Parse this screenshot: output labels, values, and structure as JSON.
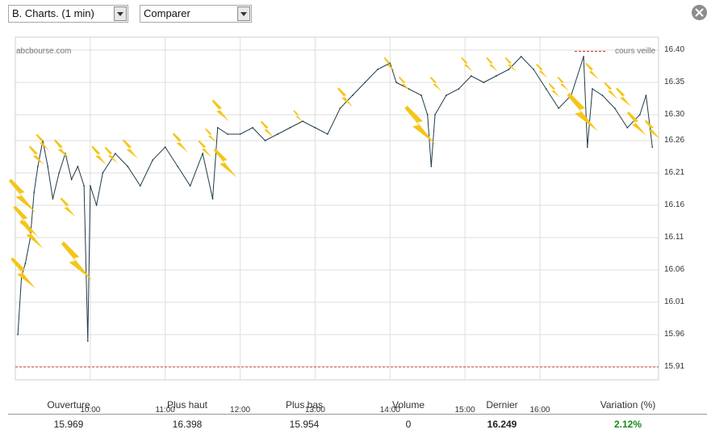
{
  "toolbar": {
    "interval_select": "B. Charts. (1 min)",
    "compare_select": "Comparer"
  },
  "chart": {
    "source": "abcbourse.com",
    "prev_close_legend": "cours veille",
    "y_ticks": [
      "16.40",
      "16.35",
      "16.30",
      "16.26",
      "16.21",
      "16.16",
      "16.11",
      "16.06",
      "16.01",
      "15.96",
      "15.91"
    ],
    "x_ticks": [
      "10:00",
      "11:00",
      "12:00",
      "13:00",
      "14:00",
      "15:00",
      "16:00"
    ],
    "colors": {
      "price": "#1f3b4a",
      "prev_close": "#cc3333",
      "grid": "#dedede",
      "flash": "#f5c518"
    }
  },
  "chart_data": {
    "type": "line",
    "x_unit": "time",
    "ylim": [
      15.89,
      16.42
    ],
    "prev_close": 15.91,
    "series": [
      {
        "points": [
          [
            "09:02",
            15.96
          ],
          [
            "09:05",
            16.05
          ],
          [
            "09:08",
            16.07
          ],
          [
            "09:12",
            16.11
          ],
          [
            "09:15",
            16.18
          ],
          [
            "09:18",
            16.22
          ],
          [
            "09:22",
            16.26
          ],
          [
            "09:26",
            16.22
          ],
          [
            "09:30",
            16.17
          ],
          [
            "09:35",
            16.21
          ],
          [
            "09:40",
            16.24
          ],
          [
            "09:45",
            16.2
          ],
          [
            "09:50",
            16.22
          ],
          [
            "09:55",
            16.19
          ],
          [
            "09:58",
            15.95
          ],
          [
            "10:00",
            16.19
          ],
          [
            "10:05",
            16.16
          ],
          [
            "10:10",
            16.21
          ],
          [
            "10:20",
            16.24
          ],
          [
            "10:30",
            16.22
          ],
          [
            "10:40",
            16.19
          ],
          [
            "10:50",
            16.23
          ],
          [
            "11:00",
            16.25
          ],
          [
            "11:10",
            16.22
          ],
          [
            "11:20",
            16.19
          ],
          [
            "11:30",
            16.24
          ],
          [
            "11:38",
            16.17
          ],
          [
            "11:42",
            16.28
          ],
          [
            "11:50",
            16.27
          ],
          [
            "12:00",
            16.27
          ],
          [
            "12:10",
            16.28
          ],
          [
            "12:20",
            16.26
          ],
          [
            "12:30",
            16.27
          ],
          [
            "12:40",
            16.28
          ],
          [
            "12:50",
            16.29
          ],
          [
            "13:00",
            16.28
          ],
          [
            "13:10",
            16.27
          ],
          [
            "13:20",
            16.31
          ],
          [
            "13:30",
            16.33
          ],
          [
            "13:40",
            16.35
          ],
          [
            "13:50",
            16.37
          ],
          [
            "14:00",
            16.38
          ],
          [
            "14:05",
            16.35
          ],
          [
            "14:15",
            16.34
          ],
          [
            "14:25",
            16.33
          ],
          [
            "14:30",
            16.3
          ],
          [
            "14:33",
            16.22
          ],
          [
            "14:36",
            16.3
          ],
          [
            "14:45",
            16.33
          ],
          [
            "14:55",
            16.34
          ],
          [
            "15:05",
            16.36
          ],
          [
            "15:15",
            16.35
          ],
          [
            "15:25",
            16.36
          ],
          [
            "15:35",
            16.37
          ],
          [
            "15:45",
            16.39
          ],
          [
            "15:55",
            16.37
          ],
          [
            "16:05",
            16.34
          ],
          [
            "16:15",
            16.31
          ],
          [
            "16:25",
            16.33
          ],
          [
            "16:35",
            16.39
          ],
          [
            "16:38",
            16.25
          ],
          [
            "16:42",
            16.34
          ],
          [
            "16:50",
            16.33
          ],
          [
            "17:00",
            16.31
          ],
          [
            "17:10",
            16.28
          ],
          [
            "17:20",
            16.3
          ],
          [
            "17:25",
            16.33
          ],
          [
            "17:30",
            16.25
          ]
        ]
      }
    ],
    "grid": true
  },
  "stats": [
    {
      "label": "Ouverture",
      "value": "15.969",
      "style": ""
    },
    {
      "label": "Plus haut",
      "value": "16.398",
      "style": ""
    },
    {
      "label": "Plus bas",
      "value": "15.954",
      "style": ""
    },
    {
      "label": "Volume",
      "value": "0",
      "style": ""
    },
    {
      "label": "Dernier",
      "value": "16.249",
      "style": "bold"
    },
    {
      "label": "Variation (%)",
      "value": "2.12%",
      "style": "green"
    }
  ],
  "flashes": [
    {
      "t": "09:02",
      "v": 16.18,
      "s": 1.4
    },
    {
      "t": "09:05",
      "v": 16.14,
      "s": 1.3
    },
    {
      "t": "09:10",
      "v": 16.12,
      "s": 1.2
    },
    {
      "t": "09:03",
      "v": 16.06,
      "s": 1.3
    },
    {
      "t": "09:15",
      "v": 16.24,
      "s": 0.8
    },
    {
      "t": "09:20",
      "v": 16.26,
      "s": 0.7
    },
    {
      "t": "09:35",
      "v": 16.25,
      "s": 0.8
    },
    {
      "t": "09:40",
      "v": 16.16,
      "s": 0.8
    },
    {
      "t": "09:45",
      "v": 16.08,
      "s": 1.6
    },
    {
      "t": "10:05",
      "v": 16.24,
      "s": 0.8
    },
    {
      "t": "10:15",
      "v": 16.24,
      "s": 0.7
    },
    {
      "t": "10:30",
      "v": 16.25,
      "s": 0.8
    },
    {
      "t": "11:10",
      "v": 16.26,
      "s": 0.8
    },
    {
      "t": "11:30",
      "v": 16.25,
      "s": 0.7
    },
    {
      "t": "11:35",
      "v": 16.27,
      "s": 0.6
    },
    {
      "t": "11:42",
      "v": 16.31,
      "s": 0.9
    },
    {
      "t": "11:45",
      "v": 16.23,
      "s": 1.2
    },
    {
      "t": "12:20",
      "v": 16.28,
      "s": 0.7
    },
    {
      "t": "12:45",
      "v": 16.3,
      "s": 0.5
    },
    {
      "t": "13:22",
      "v": 16.33,
      "s": 0.8
    },
    {
      "t": "13:58",
      "v": 16.38,
      "s": 0.6
    },
    {
      "t": "14:10",
      "v": 16.35,
      "s": 0.6
    },
    {
      "t": "14:20",
      "v": 16.29,
      "s": 1.6
    },
    {
      "t": "14:35",
      "v": 16.35,
      "s": 0.6
    },
    {
      "t": "15:00",
      "v": 16.38,
      "s": 0.6
    },
    {
      "t": "15:20",
      "v": 16.38,
      "s": 0.6
    },
    {
      "t": "15:35",
      "v": 16.38,
      "s": 0.6
    },
    {
      "t": "16:00",
      "v": 16.37,
      "s": 0.6
    },
    {
      "t": "16:10",
      "v": 16.34,
      "s": 0.6
    },
    {
      "t": "16:17",
      "v": 16.35,
      "s": 0.6
    },
    {
      "t": "16:30",
      "v": 16.31,
      "s": 1.6
    },
    {
      "t": "16:40",
      "v": 16.37,
      "s": 0.7
    },
    {
      "t": "16:55",
      "v": 16.34,
      "s": 0.7
    },
    {
      "t": "17:05",
      "v": 16.33,
      "s": 0.8
    },
    {
      "t": "17:15",
      "v": 16.29,
      "s": 1.0
    },
    {
      "t": "17:28",
      "v": 16.28,
      "s": 0.8
    }
  ]
}
